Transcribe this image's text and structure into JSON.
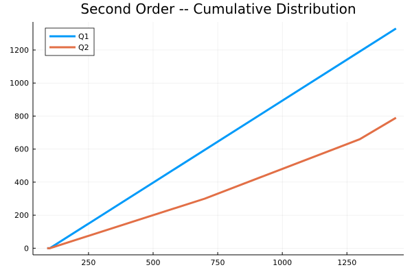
{
  "chart_data": {
    "type": "line",
    "title": "Second Order -- Cumulative Distribution",
    "xlabel": "",
    "ylabel": "",
    "xlim": [
      35,
      1470
    ],
    "ylim": [
      -40,
      1370
    ],
    "xticks": [
      250,
      500,
      750,
      1000,
      1250
    ],
    "yticks": [
      0,
      200,
      400,
      600,
      800,
      1000,
      1200
    ],
    "grid": true,
    "legend_position": "top-left",
    "series": [
      {
        "name": "Q1",
        "color": "#009af9",
        "x": [
          90,
          100,
          1440
        ],
        "y": [
          0,
          0,
          1330
        ]
      },
      {
        "name": "Q2",
        "color": "#e26f46",
        "x": [
          90,
          100,
          700,
          1300,
          1440
        ],
        "y": [
          0,
          0,
          300,
          660,
          790
        ]
      }
    ]
  }
}
